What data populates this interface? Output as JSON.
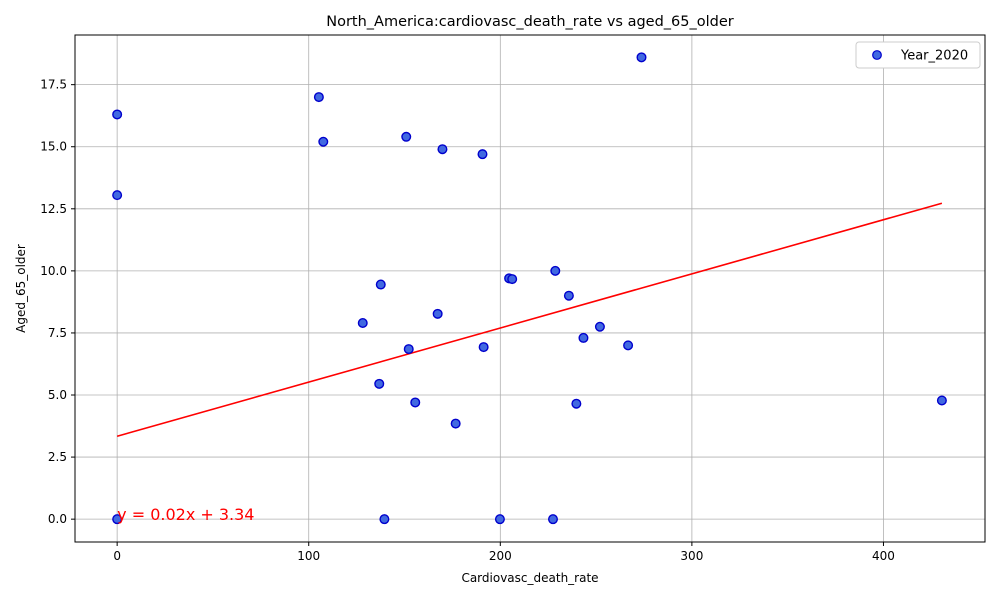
{
  "chart_data": {
    "type": "scatter",
    "title": "North_America:cardiovasc_death_rate vs aged_65_older",
    "xlabel": "Cardiovasc_death_rate",
    "ylabel": "Aged_65_older",
    "xlim": [
      -22,
      453
    ],
    "ylim": [
      -0.92,
      19.5
    ],
    "x_ticks": [
      0,
      100,
      200,
      300,
      400
    ],
    "y_ticks": [
      0.0,
      2.5,
      5.0,
      7.5,
      10.0,
      12.5,
      15.0,
      17.5
    ],
    "x_tick_labels": [
      "0",
      "100",
      "200",
      "300",
      "400"
    ],
    "y_tick_labels": [
      "0.0",
      "2.5",
      "5.0",
      "7.5",
      "10.0",
      "12.5",
      "15.0",
      "17.5"
    ],
    "grid": true,
    "legend_position": "top-right",
    "series": [
      {
        "name": "Year_2020",
        "color": "#4169E1",
        "edge_color": "#0000CD",
        "x": [
          0,
          0,
          0,
          105.3,
          107.6,
          128.2,
          137.6,
          136.8,
          139.5,
          150.9,
          152.2,
          155.6,
          167.3,
          169.8,
          176.7,
          190.7,
          191.3,
          199.8,
          204.6,
          206.2,
          227.5,
          228.7,
          235.8,
          239.7,
          243.4,
          252.0,
          266.7,
          273.7,
          430.5
        ],
        "y": [
          16.3,
          13.05,
          0.0,
          17.0,
          15.2,
          7.9,
          9.45,
          5.45,
          0.0,
          15.4,
          6.85,
          4.7,
          8.27,
          14.9,
          3.85,
          14.7,
          6.93,
          0.0,
          9.7,
          9.67,
          0.0,
          10.0,
          9.0,
          4.65,
          7.3,
          7.75,
          7.0,
          18.6,
          4.78
        ]
      }
    ],
    "regression": {
      "slope": 0.0218,
      "intercept": 3.34,
      "x_range": [
        0,
        430.5
      ],
      "color": "#FF0000",
      "label": "y = 0.02x + 3.34"
    }
  }
}
